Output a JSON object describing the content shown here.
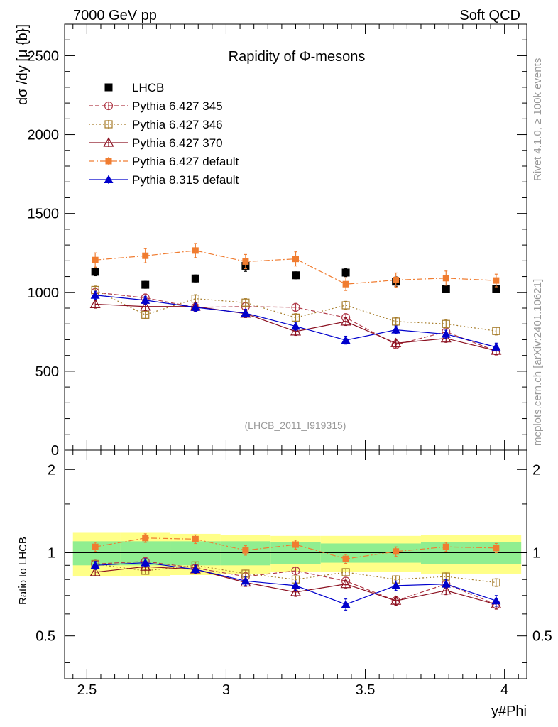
{
  "header": {
    "left": "7000 GeV pp",
    "right": "Soft QCD"
  },
  "side_text": {
    "top": "Rivet 4.1.0, ≥ 100k events",
    "bottom": "mcplots.cern.ch [arXiv:2401.10621]"
  },
  "colors": {
    "LHCB": "#000000",
    "p345": "#b03a48",
    "p346": "#a67c2a",
    "p370": "#8b1020",
    "p6def": "#f07c30",
    "p8def": "#0000cc",
    "band_inner": "#90ee90",
    "band_outer": "#ffff88"
  },
  "chart_data": [
    {
      "type": "line",
      "panel": "main",
      "title": "Rapidity of Φ-mesons",
      "watermark": "(LHCB_2011_I919315)",
      "xlabel": "y#Phi",
      "ylabel": "dσ /dy  [μ {b}]",
      "xlim": [
        2.42,
        4.08
      ],
      "ylim": [
        0,
        2700
      ],
      "yticks": [
        0,
        500,
        1000,
        1500,
        2000,
        2500
      ],
      "ytick_labels": [
        "0",
        "500",
        "1000",
        "1500",
        "2000",
        "2500"
      ],
      "x": [
        2.53,
        2.71,
        2.89,
        3.07,
        3.25,
        3.43,
        3.61,
        3.79,
        3.97
      ],
      "series": [
        {
          "name": "LHCB",
          "style": "data",
          "values": [
            1130,
            1048,
            1088,
            1168,
            1108,
            1125,
            1068,
            1020,
            1022
          ],
          "errors": [
            25,
            22,
            22,
            35,
            22,
            25,
            30,
            22,
            22
          ]
        },
        {
          "name": "Pythia 6.427 345",
          "style": "p345",
          "values": [
            1000,
            965,
            905,
            910,
            905,
            840,
            668,
            750,
            628
          ],
          "errors": [
            25,
            25,
            25,
            25,
            25,
            25,
            25,
            25,
            25
          ]
        },
        {
          "name": "Pythia 6.427 346",
          "style": "p346",
          "values": [
            1015,
            858,
            960,
            935,
            840,
            918,
            815,
            800,
            755
          ],
          "errors": [
            25,
            25,
            25,
            25,
            25,
            25,
            25,
            25,
            25
          ]
        },
        {
          "name": "Pythia 6.427 370",
          "style": "p370",
          "values": [
            925,
            910,
            910,
            865,
            752,
            815,
            678,
            708,
            630
          ],
          "errors": [
            25,
            25,
            25,
            25,
            25,
            25,
            25,
            25,
            25
          ]
        },
        {
          "name": "Pythia 6.427 default",
          "style": "p6def",
          "values": [
            1205,
            1232,
            1265,
            1195,
            1212,
            1052,
            1078,
            1090,
            1075
          ],
          "errors": [
            45,
            45,
            45,
            45,
            45,
            40,
            45,
            45,
            40
          ]
        },
        {
          "name": "Pythia 8.315 default",
          "style": "p8def",
          "values": [
            982,
            950,
            905,
            868,
            785,
            697,
            762,
            735,
            653
          ],
          "errors": [
            25,
            25,
            25,
            25,
            25,
            25,
            25,
            25,
            25
          ]
        }
      ]
    },
    {
      "type": "line",
      "panel": "ratio",
      "ylabel": "Ratio to LHCB",
      "xlabel": "y#Phi",
      "xlim": [
        2.42,
        4.08
      ],
      "ylim": [
        0.35,
        2.35
      ],
      "yticks": [
        0.5,
        1,
        2
      ],
      "ytick_labels": [
        "0.5",
        "1",
        "2"
      ],
      "xticks": [
        2.5,
        3,
        3.5,
        4
      ],
      "xtick_labels": [
        "2.5",
        "3",
        "3.5",
        "4"
      ],
      "reference": 1,
      "band_edges": [
        2.45,
        2.62,
        2.8,
        2.98,
        3.16,
        3.34,
        3.52,
        3.7,
        3.88,
        4.06
      ],
      "band_inner": [
        0.1,
        0.1,
        0.1,
        0.1,
        0.09,
        0.08,
        0.08,
        0.09,
        0.09
      ],
      "band_outer": [
        0.18,
        0.18,
        0.17,
        0.16,
        0.15,
        0.15,
        0.15,
        0.16,
        0.16
      ],
      "x": [
        2.53,
        2.71,
        2.89,
        3.07,
        3.25,
        3.43,
        3.61,
        3.79,
        3.97
      ],
      "series": [
        {
          "name": "Pythia 6.427 345",
          "style": "p345",
          "values": [
            0.91,
            0.93,
            0.88,
            0.82,
            0.86,
            0.79,
            0.67,
            0.77,
            0.65
          ],
          "errors": [
            0.025,
            0.025,
            0.025,
            0.025,
            0.025,
            0.025,
            0.025,
            0.025,
            0.025
          ]
        },
        {
          "name": "Pythia 6.427 346",
          "style": "p346",
          "values": [
            0.91,
            0.86,
            0.9,
            0.84,
            0.8,
            0.85,
            0.8,
            0.82,
            0.78
          ],
          "errors": [
            0.025,
            0.025,
            0.025,
            0.025,
            0.025,
            0.025,
            0.025,
            0.025,
            0.025
          ]
        },
        {
          "name": "Pythia 6.427 370",
          "style": "p370",
          "values": [
            0.85,
            0.89,
            0.87,
            0.78,
            0.72,
            0.77,
            0.67,
            0.73,
            0.65
          ],
          "errors": [
            0.025,
            0.025,
            0.025,
            0.025,
            0.025,
            0.025,
            0.025,
            0.025,
            0.025
          ]
        },
        {
          "name": "Pythia 6.427 default",
          "style": "p6def",
          "values": [
            1.05,
            1.13,
            1.12,
            1.02,
            1.07,
            0.95,
            1.01,
            1.05,
            1.04
          ],
          "errors": [
            0.04,
            0.04,
            0.04,
            0.04,
            0.04,
            0.035,
            0.04,
            0.04,
            0.04
          ]
        },
        {
          "name": "Pythia 8.315 default",
          "style": "p8def",
          "values": [
            0.9,
            0.92,
            0.87,
            0.79,
            0.76,
            0.65,
            0.76,
            0.77,
            0.67
          ],
          "errors": [
            0.03,
            0.03,
            0.03,
            0.03,
            0.03,
            0.03,
            0.03,
            0.03,
            0.03
          ]
        }
      ]
    }
  ]
}
